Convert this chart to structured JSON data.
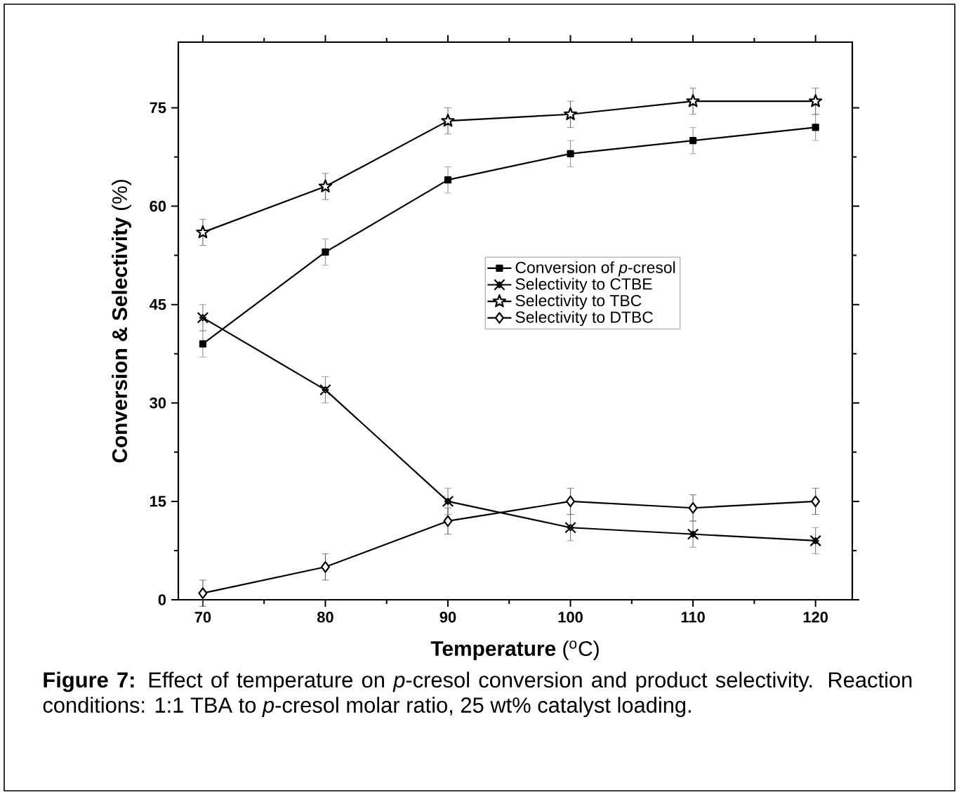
{
  "chart_data": {
    "type": "line",
    "xlabel": "**Temperature** ($^{o}$C)",
    "ylabel": "**Conversion & Selectivity** (%)",
    "annotations": [
      "**Figure 7:** Effect of temperature on *p*-cresol conversion and product selectivity. Reaction conditions: 1:1 TBA to *p*-cresol molar ratio, 25 wt% catalyst loading."
    ],
    "x": [
      70,
      80,
      90,
      100,
      110,
      120
    ],
    "series": [
      {
        "name": "Conversion of *p*-cresol",
        "color": "#000000",
        "marker": "square",
        "values": [
          39,
          53,
          64,
          68,
          70,
          72
        ],
        "errors": [
          2,
          2,
          2,
          2,
          2,
          2
        ]
      },
      {
        "name": "Selectivity to CTBE",
        "color": "#000000",
        "marker": "cross",
        "values": [
          43,
          32,
          15,
          11,
          10,
          9
        ],
        "errors": [
          2,
          2,
          2,
          2,
          2,
          2
        ]
      },
      {
        "name": "Selectivity to TBC",
        "color": "#000000",
        "marker": "star",
        "values": [
          56,
          63,
          73,
          74,
          76,
          76
        ],
        "errors": [
          2,
          2,
          2,
          2,
          2,
          2
        ]
      },
      {
        "name": "Selectivity to DTBC",
        "color": "#000000",
        "marker": "diamond",
        "values": [
          1,
          5,
          12,
          15,
          14,
          15
        ],
        "errors": [
          2,
          2,
          2,
          2,
          2,
          2
        ]
      }
    ],
    "xlim": [
      68,
      123
    ],
    "ylim": [
      0,
      85
    ],
    "xticks": [
      70,
      80,
      90,
      100,
      110,
      120
    ],
    "yticks": [
      0,
      15,
      30,
      45,
      60,
      75
    ],
    "legend": "center",
    "line_style": "solid"
  }
}
